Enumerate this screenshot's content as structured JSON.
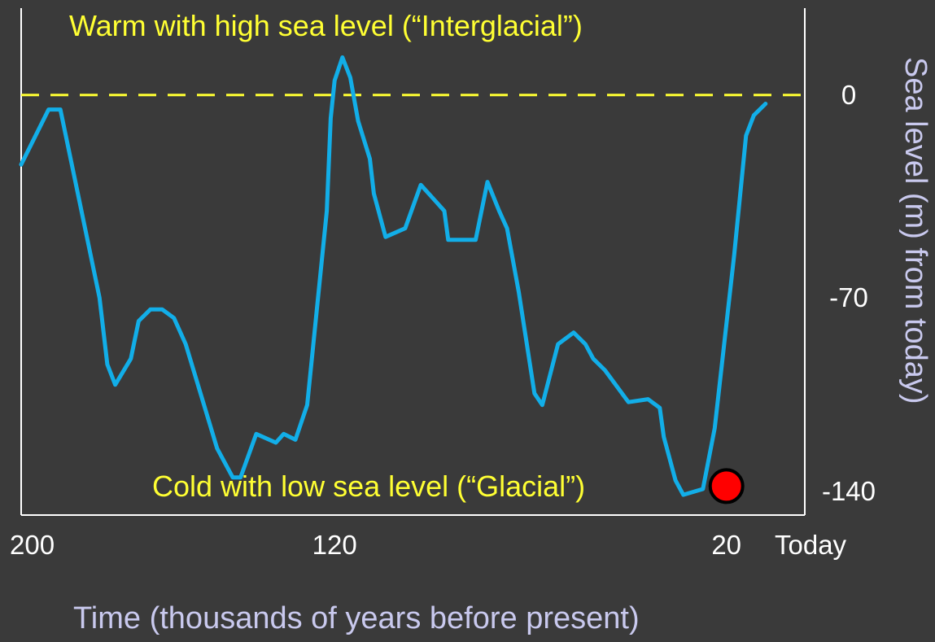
{
  "chart_data": {
    "type": "line",
    "xlabel": "Time (thousands of years before present)",
    "ylabel": "Sea level (m) from today)",
    "xlim": [
      200,
      0
    ],
    "ylim": [
      -145,
      30
    ],
    "x_ticks": [
      {
        "value": 200,
        "label": "200"
      },
      {
        "value": 120,
        "label": "120"
      },
      {
        "value": 20,
        "label": "20"
      },
      {
        "value": 0,
        "label": "Today"
      }
    ],
    "y_ticks": [
      {
        "value": 0,
        "label": "0"
      },
      {
        "value": -70,
        "label": "-70"
      },
      {
        "value": -140,
        "label": "-140"
      }
    ],
    "reference_line": {
      "value": 0,
      "color": "#ffff33",
      "style": "dashed"
    },
    "annotations": [
      {
        "text": "Warm with high sea level (“Interglacial”)",
        "color": "#ffff33"
      },
      {
        "text": "Cold with low sea level (“Glacial”)",
        "color": "#ffff33"
      }
    ],
    "marker": {
      "x": 20,
      "y": -135,
      "color": "#ff0000"
    },
    "series": [
      {
        "color": "#12aee8",
        "points": [
          [
            200,
            -24
          ],
          [
            193,
            -5
          ],
          [
            190,
            -5
          ],
          [
            180,
            -70
          ],
          [
            178,
            -93
          ],
          [
            176,
            -100
          ],
          [
            172,
            -91
          ],
          [
            170,
            -78
          ],
          [
            167,
            -74
          ],
          [
            164,
            -74
          ],
          [
            161,
            -77
          ],
          [
            158,
            -86
          ],
          [
            150,
            -122
          ],
          [
            146,
            -132
          ],
          [
            144,
            -132
          ],
          [
            140,
            -117
          ],
          [
            135,
            -120
          ],
          [
            133,
            -117
          ],
          [
            130,
            -119
          ],
          [
            127,
            -107
          ],
          [
            122,
            -40
          ],
          [
            121,
            -8
          ],
          [
            120,
            5
          ],
          [
            118,
            13
          ],
          [
            116,
            6
          ],
          [
            114,
            -9
          ],
          [
            111,
            -22
          ],
          [
            110,
            -34
          ],
          [
            107,
            -49
          ],
          [
            102,
            -46
          ],
          [
            98,
            -31
          ],
          [
            94,
            -37
          ],
          [
            92,
            -40
          ],
          [
            91,
            -50
          ],
          [
            84,
            -50
          ],
          [
            81,
            -30
          ],
          [
            78,
            -40
          ],
          [
            76,
            -46
          ],
          [
            73,
            -68
          ],
          [
            69,
            -103
          ],
          [
            67,
            -107
          ],
          [
            63,
            -86
          ],
          [
            59,
            -82
          ],
          [
            56,
            -86
          ],
          [
            54,
            -91
          ],
          [
            51,
            -95
          ],
          [
            45,
            -106
          ],
          [
            40,
            -105
          ],
          [
            37,
            -108
          ],
          [
            36,
            -118
          ],
          [
            33,
            -133
          ],
          [
            31,
            -138
          ],
          [
            26,
            -136
          ],
          [
            23,
            -115
          ],
          [
            18,
            -55
          ],
          [
            15,
            -14
          ],
          [
            13,
            -7
          ],
          [
            10,
            -3
          ]
        ]
      }
    ]
  }
}
